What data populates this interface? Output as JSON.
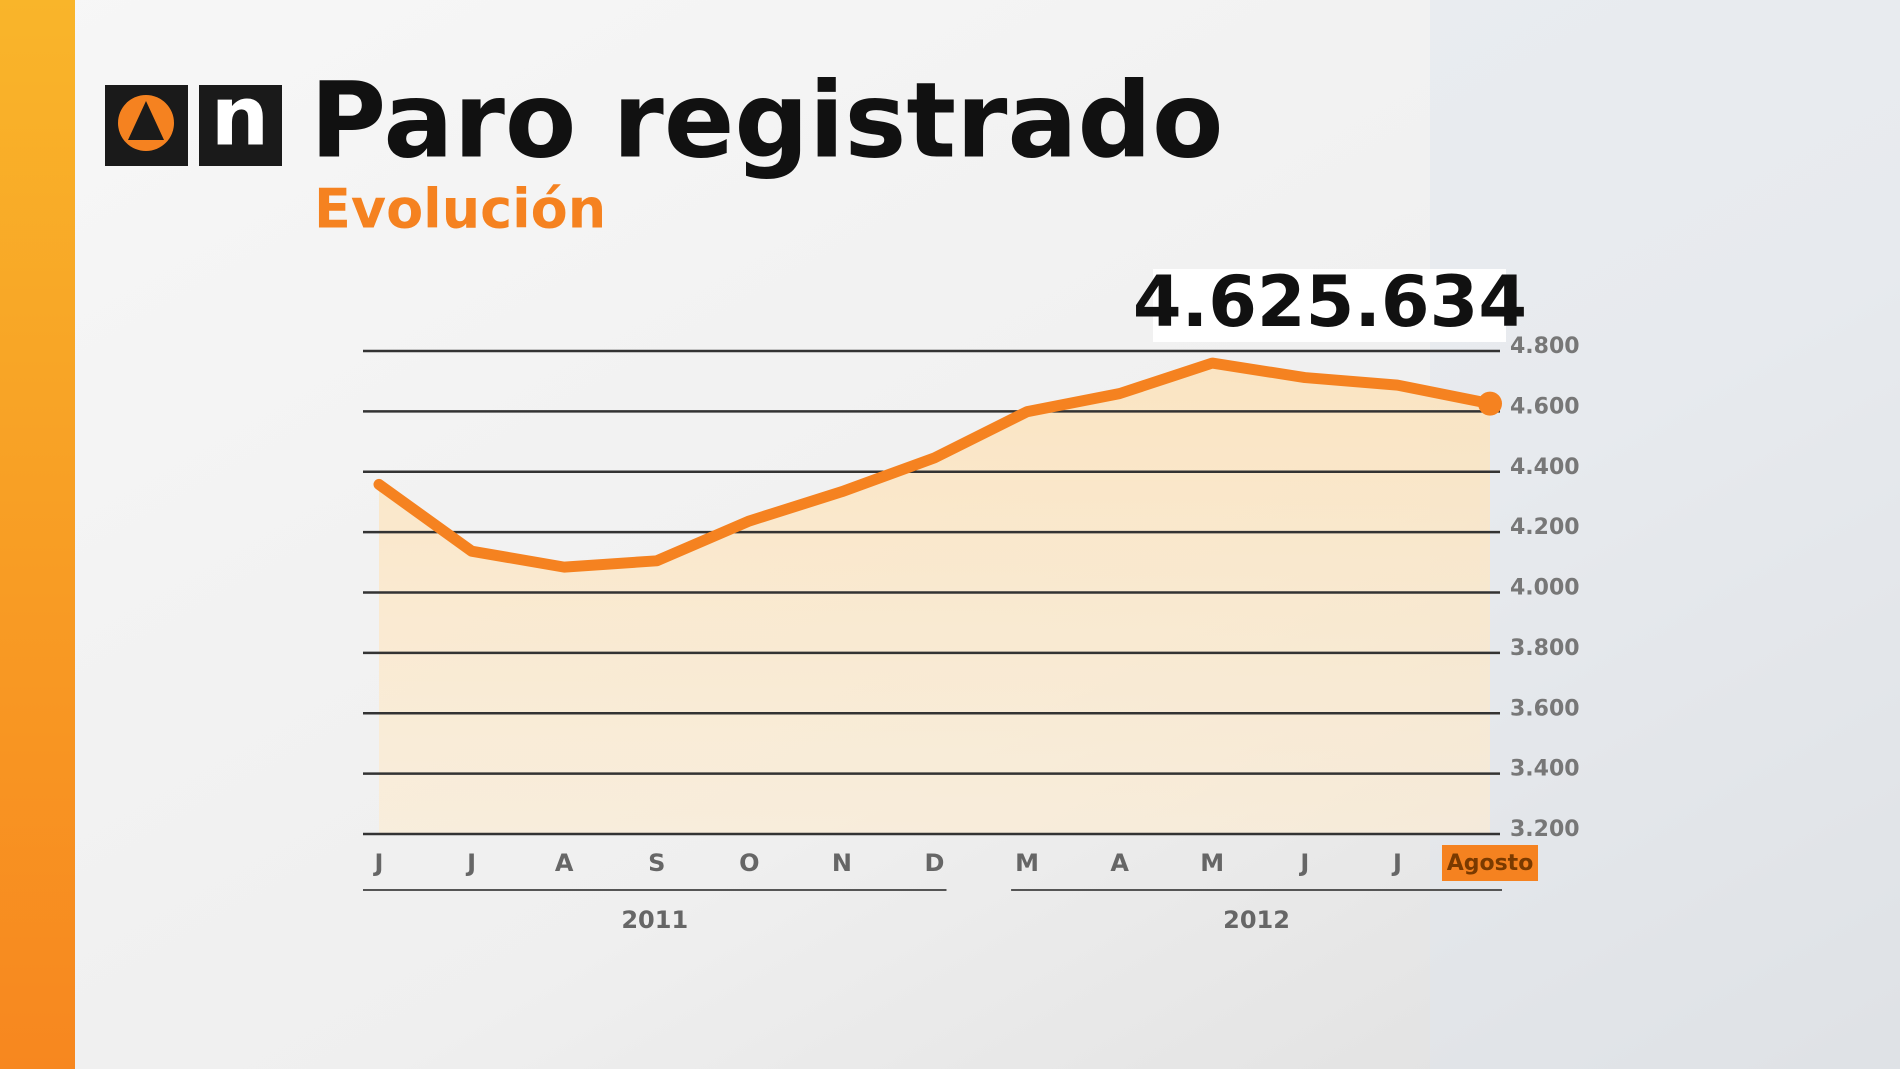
{
  "brand": "n",
  "chart_data": {
    "type": "line",
    "title": "Paro registrado",
    "subtitle": "Evolución",
    "categories": [
      "J",
      "J",
      "A",
      "S",
      "O",
      "N",
      "D",
      "M",
      "A",
      "M",
      "J",
      "J",
      "Agosto"
    ],
    "values": [
      4358,
      4137,
      4084,
      4105,
      4237,
      4334,
      4446,
      4599,
      4659,
      4760,
      4712,
      4687,
      4625.634
    ],
    "value_labels": [
      null,
      null,
      null,
      null,
      null,
      null,
      null,
      null,
      null,
      null,
      null,
      null,
      "4.625.634"
    ],
    "color": "#f58220",
    "year_labels": [
      "2011",
      "2012"
    ],
    "ylim": [
      3200,
      4800
    ],
    "yticks": [
      {
        "value": 3200,
        "label": "3.200"
      },
      {
        "value": 3400,
        "label": "3.400"
      },
      {
        "value": 3600,
        "label": "3.600"
      },
      {
        "value": 3800,
        "label": "3.800"
      },
      {
        "value": 4000,
        "label": "4.000"
      },
      {
        "value": 4200,
        "label": "4.200"
      },
      {
        "value": 4400,
        "label": "4.400"
      },
      {
        "value": 4600,
        "label": "4.600"
      },
      {
        "value": 4800,
        "label": "4.800"
      }
    ],
    "grid": true
  }
}
